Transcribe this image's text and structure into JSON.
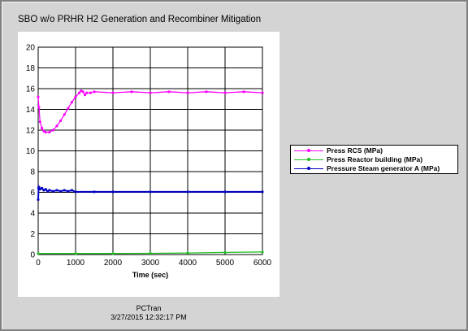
{
  "window": {
    "title": "SBO w/o PRHR H2 Generation and Recombiner Mitigation",
    "footer_app": "PCTran",
    "footer_timestamp": "3/27/2015 12:32:17 PM"
  },
  "chart_data": {
    "type": "line",
    "title": "SBO w/o PRHR H2 Generation and Recombiner Mitigation",
    "xlabel": "Time (sec)",
    "ylabel": "",
    "xlim": [
      0,
      6000
    ],
    "ylim": [
      0,
      20
    ],
    "xticks": [
      0,
      1000,
      2000,
      3000,
      4000,
      5000,
      6000
    ],
    "yticks": [
      0,
      2,
      4,
      6,
      8,
      10,
      12,
      14,
      16,
      18,
      20
    ],
    "grid": true,
    "legend_position": "right",
    "series": [
      {
        "name": "Press RCS (MPa)",
        "color": "#ff00ff",
        "x": [
          0,
          20,
          50,
          100,
          150,
          200,
          300,
          400,
          500,
          600,
          700,
          800,
          900,
          1000,
          1100,
          1150,
          1200,
          1250,
          1300,
          1400,
          1500,
          2000,
          2500,
          3000,
          3500,
          4000,
          4500,
          5000,
          5500,
          6000
        ],
        "y": [
          15.2,
          14.2,
          12.8,
          12.2,
          11.9,
          11.8,
          11.8,
          12.0,
          12.4,
          12.9,
          13.5,
          14.1,
          14.7,
          15.2,
          15.6,
          15.8,
          15.7,
          15.4,
          15.6,
          15.6,
          15.7,
          15.6,
          15.7,
          15.6,
          15.7,
          15.6,
          15.7,
          15.6,
          15.7,
          15.6
        ]
      },
      {
        "name": "Press Reactor building (MPa)",
        "color": "#22c022",
        "x": [
          0,
          1000,
          2000,
          3000,
          4000,
          5000,
          6000
        ],
        "y": [
          0.1,
          0.1,
          0.1,
          0.12,
          0.15,
          0.2,
          0.25
        ]
      },
      {
        "name": "Pressure Steam generator A (MPa)",
        "color": "#0000c0",
        "x": [
          0,
          10,
          20,
          50,
          100,
          150,
          200,
          250,
          300,
          400,
          500,
          600,
          700,
          800,
          900,
          1000,
          1500,
          2000,
          3000,
          4000,
          5000,
          6000
        ],
        "y": [
          5.3,
          6.4,
          6.5,
          6.3,
          6.4,
          6.2,
          6.3,
          6.1,
          6.2,
          6.1,
          6.2,
          6.1,
          6.2,
          6.1,
          6.2,
          6.05,
          6.05,
          6.05,
          6.05,
          6.05,
          6.05,
          6.05
        ]
      }
    ]
  }
}
